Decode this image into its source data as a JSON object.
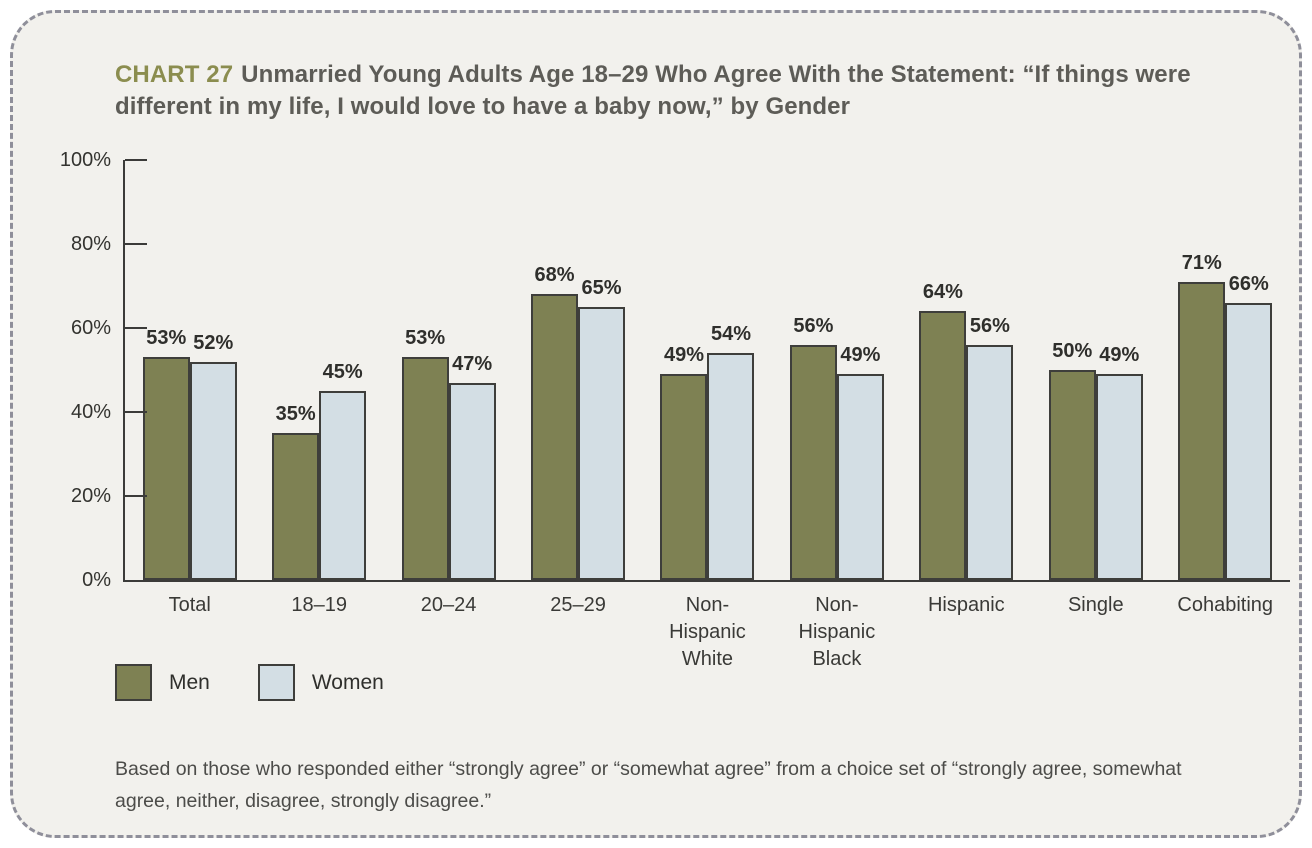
{
  "title": {
    "label": "CHART 27",
    "text": "Unmarried Young Adults Age 18–29 Who Agree With the Statement: “If things were different in my life, I would love to have a baby now,” by Gender"
  },
  "chart_data": {
    "type": "bar",
    "title": "CHART 27 Unmarried Young Adults Age 18–29 Who Agree With the Statement: “If things were different in my life, I would love to have a baby now,” by Gender",
    "categories": [
      "Total",
      "18–19",
      "20–24",
      "25–29",
      "Non-\nHispanic\nWhite",
      "Non-\nHispanic\nBlack",
      "Hispanic",
      "Single",
      "Cohabiting"
    ],
    "series": [
      {
        "name": "Men",
        "color": "#7e8153",
        "values": [
          53,
          35,
          53,
          68,
          49,
          56,
          64,
          50,
          71
        ]
      },
      {
        "name": "Women",
        "color": "#d3dee4",
        "values": [
          52,
          45,
          47,
          65,
          54,
          49,
          56,
          49,
          66
        ]
      }
    ],
    "value_suffix": "%",
    "xlabel": "",
    "ylabel": "",
    "ylim": [
      0,
      100
    ],
    "yticks": [
      0,
      20,
      40,
      60,
      80,
      100
    ],
    "ytick_labels": [
      "0%",
      "20%",
      "40%",
      "60%",
      "80%",
      "100%"
    ],
    "grid": false,
    "legend_position": "bottom-left",
    "bar_border_color": "#3e3e3b",
    "axis_color": "#3b3b39"
  },
  "legend": {
    "items": [
      {
        "label": "Men",
        "color": "#7e8153"
      },
      {
        "label": "Women",
        "color": "#d3dee4"
      }
    ]
  },
  "footnote": "Based on those who responded either “strongly agree” or “somewhat agree” from a choice set of “strongly agree, somewhat agree, neither, disagree, strongly disagree.”",
  "colors": {
    "panel_background": "#f2f1ed",
    "panel_border": "#8f8f9a",
    "chart_number_accent": "#8b8d4f",
    "title_text": "#5d5c57"
  }
}
